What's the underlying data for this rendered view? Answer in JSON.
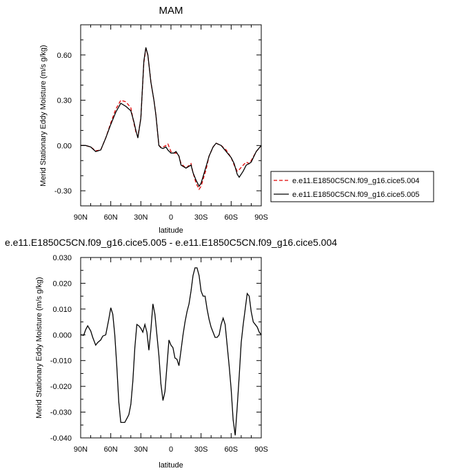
{
  "chart_data": [
    {
      "type": "line",
      "title": "MAM",
      "xlabel": "latitude",
      "ylabel": "Merid Stationary Eddy Moisture (m/s g/kg)",
      "xlim": [
        90,
        -90
      ],
      "ylim": [
        -0.4,
        0.8
      ],
      "x_ticks": [
        90,
        60,
        30,
        0,
        -30,
        -60,
        -90
      ],
      "x_tick_labels": [
        "90N",
        "60N",
        "30N",
        "0",
        "30S",
        "60S",
        "90S"
      ],
      "y_ticks": [
        -0.3,
        0.0,
        0.3,
        0.6
      ],
      "y_tick_labels": [
        "-0.30",
        "0.00",
        "0.30",
        "0.60"
      ],
      "legend_position": "outside-right",
      "series": [
        {
          "name": "e.e11.E1850C5CN.f09_g16.cice5.004",
          "color": "#e00000",
          "dash": "dashed",
          "x": [
            90,
            85,
            80,
            75,
            70,
            65,
            60,
            55,
            50,
            45,
            40,
            37,
            35,
            33,
            30,
            27,
            25,
            23,
            20,
            17,
            15,
            12,
            10,
            8,
            5,
            3,
            0,
            -3,
            -5,
            -8,
            -10,
            -15,
            -20,
            -22,
            -25,
            -28,
            -30,
            -35,
            -38,
            -42,
            -45,
            -50,
            -55,
            -60,
            -63,
            -66,
            -68,
            -72,
            -75,
            -78,
            -80,
            -85,
            -90
          ],
          "y": [
            0.0,
            0.0,
            -0.01,
            -0.035,
            -0.03,
            0.05,
            0.15,
            0.24,
            0.3,
            0.29,
            0.25,
            0.15,
            0.09,
            0.06,
            0.18,
            0.55,
            0.64,
            0.6,
            0.42,
            0.3,
            0.2,
            0.0,
            -0.01,
            -0.01,
            0.0,
            0.01,
            -0.04,
            -0.05,
            -0.05,
            -0.07,
            -0.12,
            -0.15,
            -0.12,
            -0.18,
            -0.25,
            -0.29,
            -0.27,
            -0.16,
            -0.07,
            -0.01,
            0.015,
            0.0,
            -0.03,
            -0.08,
            -0.13,
            -0.17,
            -0.16,
            -0.13,
            -0.11,
            -0.12,
            -0.1,
            -0.04,
            0.0
          ]
        },
        {
          "name": "e.e11.E1850C5CN.f09_g16.cice5.005",
          "color": "#000000",
          "dash": "solid",
          "x": [
            90,
            85,
            80,
            75,
            70,
            65,
            60,
            55,
            50,
            45,
            40,
            37,
            35,
            33,
            30,
            27,
            25,
            23,
            20,
            17,
            15,
            12,
            10,
            8,
            5,
            3,
            0,
            -3,
            -5,
            -8,
            -10,
            -15,
            -20,
            -22,
            -25,
            -28,
            -30,
            -35,
            -38,
            -42,
            -45,
            -50,
            -55,
            -60,
            -63,
            -66,
            -68,
            -72,
            -75,
            -78,
            -80,
            -85,
            -90
          ],
          "y": [
            0.0,
            0.0,
            -0.01,
            -0.04,
            -0.03,
            0.05,
            0.14,
            0.22,
            0.28,
            0.26,
            0.23,
            0.16,
            0.1,
            0.05,
            0.18,
            0.56,
            0.65,
            0.6,
            0.42,
            0.3,
            0.2,
            0.0,
            -0.015,
            -0.02,
            -0.01,
            -0.03,
            -0.05,
            -0.05,
            -0.04,
            -0.07,
            -0.13,
            -0.15,
            -0.13,
            -0.18,
            -0.23,
            -0.27,
            -0.25,
            -0.14,
            -0.07,
            -0.01,
            0.015,
            0.0,
            -0.04,
            -0.08,
            -0.12,
            -0.19,
            -0.21,
            -0.17,
            -0.13,
            -0.12,
            -0.11,
            -0.04,
            0.0
          ]
        }
      ]
    },
    {
      "type": "line",
      "title": "e.e11.E1850C5CN.f09_g16.cice5.005 - e.e11.E1850C5CN.f09_g16.cice5.004",
      "xlabel": "latitude",
      "ylabel": "Merid Stationary Eddy Moisture (m/s g/kg)",
      "xlim": [
        90,
        -90
      ],
      "ylim": [
        -0.04,
        0.03
      ],
      "x_ticks": [
        90,
        60,
        30,
        0,
        -30,
        -60,
        -90
      ],
      "x_tick_labels": [
        "90N",
        "60N",
        "30N",
        "0",
        "30S",
        "60S",
        "90S"
      ],
      "y_ticks": [
        -0.04,
        -0.03,
        -0.02,
        -0.01,
        0.0,
        0.01,
        0.02,
        0.03
      ],
      "y_tick_labels": [
        "-0.040",
        "-0.030",
        "-0.020",
        "-0.010",
        "0.000",
        "0.010",
        "0.020",
        "0.030"
      ],
      "series": [
        {
          "color": "#000000",
          "dash": "solid",
          "x": [
            90,
            87,
            85,
            83,
            80,
            78,
            75,
            73,
            70,
            68,
            65,
            62,
            60,
            58,
            56,
            54,
            52,
            50,
            48,
            46,
            44,
            42,
            40,
            38,
            36,
            34,
            32,
            30,
            28,
            26,
            24,
            22,
            20,
            18,
            16,
            14,
            12,
            10,
            8,
            6,
            4,
            2,
            0,
            -2,
            -4,
            -6,
            -8,
            -10,
            -12,
            -14,
            -16,
            -18,
            -20,
            -22,
            -24,
            -26,
            -28,
            -30,
            -32,
            -34,
            -36,
            -38,
            -40,
            -42,
            -44,
            -46,
            -48,
            -50,
            -52,
            -54,
            -56,
            -58,
            -60,
            -62,
            -64,
            -66,
            -68,
            -70,
            -72,
            -74,
            -76,
            -78,
            -80,
            -82,
            -84,
            -86,
            -88,
            -90
          ],
          "y": [
            0.0,
            -0.0002,
            0.002,
            0.0035,
            0.0015,
            -0.001,
            -0.004,
            -0.003,
            -0.002,
            -0.0005,
            0.0,
            0.006,
            0.0105,
            0.008,
            0.0,
            -0.012,
            -0.026,
            -0.034,
            -0.034,
            -0.034,
            -0.0325,
            -0.031,
            -0.027,
            -0.018,
            -0.005,
            0.004,
            0.0035,
            0.0025,
            0.001,
            0.004,
            0.001,
            -0.006,
            0.002,
            0.012,
            0.008,
            0.0,
            -0.008,
            -0.019,
            -0.0255,
            -0.022,
            -0.012,
            -0.002,
            -0.004,
            -0.005,
            -0.009,
            -0.0095,
            -0.012,
            -0.006,
            0.0,
            0.005,
            0.009,
            0.012,
            0.017,
            0.023,
            0.026,
            0.026,
            0.023,
            0.017,
            0.015,
            0.015,
            0.01,
            0.006,
            0.003,
            0.001,
            -0.001,
            -0.001,
            0.0,
            0.004,
            0.0065,
            0.004,
            -0.004,
            -0.012,
            -0.021,
            -0.033,
            -0.039,
            -0.028,
            -0.016,
            -0.003,
            0.004,
            0.01,
            0.016,
            0.015,
            0.009,
            0.005,
            0.004,
            0.003,
            0.001,
            0.0
          ]
        }
      ]
    }
  ]
}
